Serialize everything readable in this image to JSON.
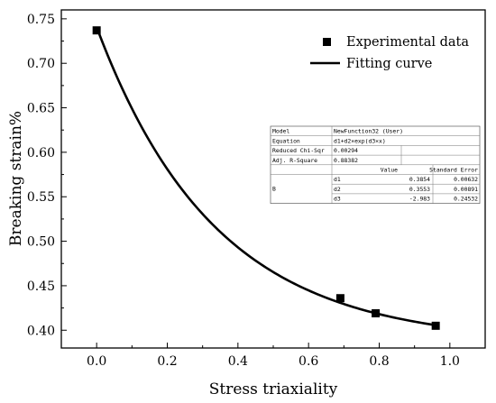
{
  "chart_data": {
    "type": "scatter",
    "xlabel": "Stress triaxiality",
    "ylabel": "Breaking strain%",
    "xlim": [
      -0.1,
      1.1
    ],
    "ylim": [
      0.38,
      0.76
    ],
    "xticks": [
      "0.0",
      "0.2",
      "0.4",
      "0.6",
      "0.8",
      "1.0"
    ],
    "yticks": [
      "0.40",
      "0.45",
      "0.50",
      "0.55",
      "0.60",
      "0.65",
      "0.70",
      "0.75"
    ],
    "grid": false,
    "legend_position": "top-right",
    "series": [
      {
        "name": "Experimental data",
        "type": "scatter",
        "marker": "square",
        "color": "#000000",
        "x": [
          0.0,
          0.69,
          0.79,
          0.96
        ],
        "y": [
          0.737,
          0.436,
          0.419,
          0.405
        ]
      },
      {
        "name": "Fitting curve",
        "type": "line",
        "color": "#000000",
        "function": "d1+d2*exp(d3*x)",
        "params": {
          "d1": 0.3854,
          "d2": 0.3553,
          "d3": -2.983
        },
        "x_range": [
          0.0,
          0.96
        ]
      }
    ],
    "fit_table": {
      "rows": [
        [
          "Model",
          "NewFunction32 (User)"
        ],
        [
          "Equation",
          "d1+d2×exp(d3×x)"
        ],
        [
          "Reduced Chi-Sqr",
          "0.00294"
        ],
        [
          "Adj. R-Square",
          "0.88382"
        ]
      ],
      "param_headers": [
        "Value",
        "Standard Error"
      ],
      "param_group": "B",
      "params": [
        [
          "d1",
          "0.3854",
          "0.00632"
        ],
        [
          "d2",
          "0.3553",
          "0.00891"
        ],
        [
          "d3",
          "-2.983",
          "0.24532"
        ]
      ]
    }
  }
}
